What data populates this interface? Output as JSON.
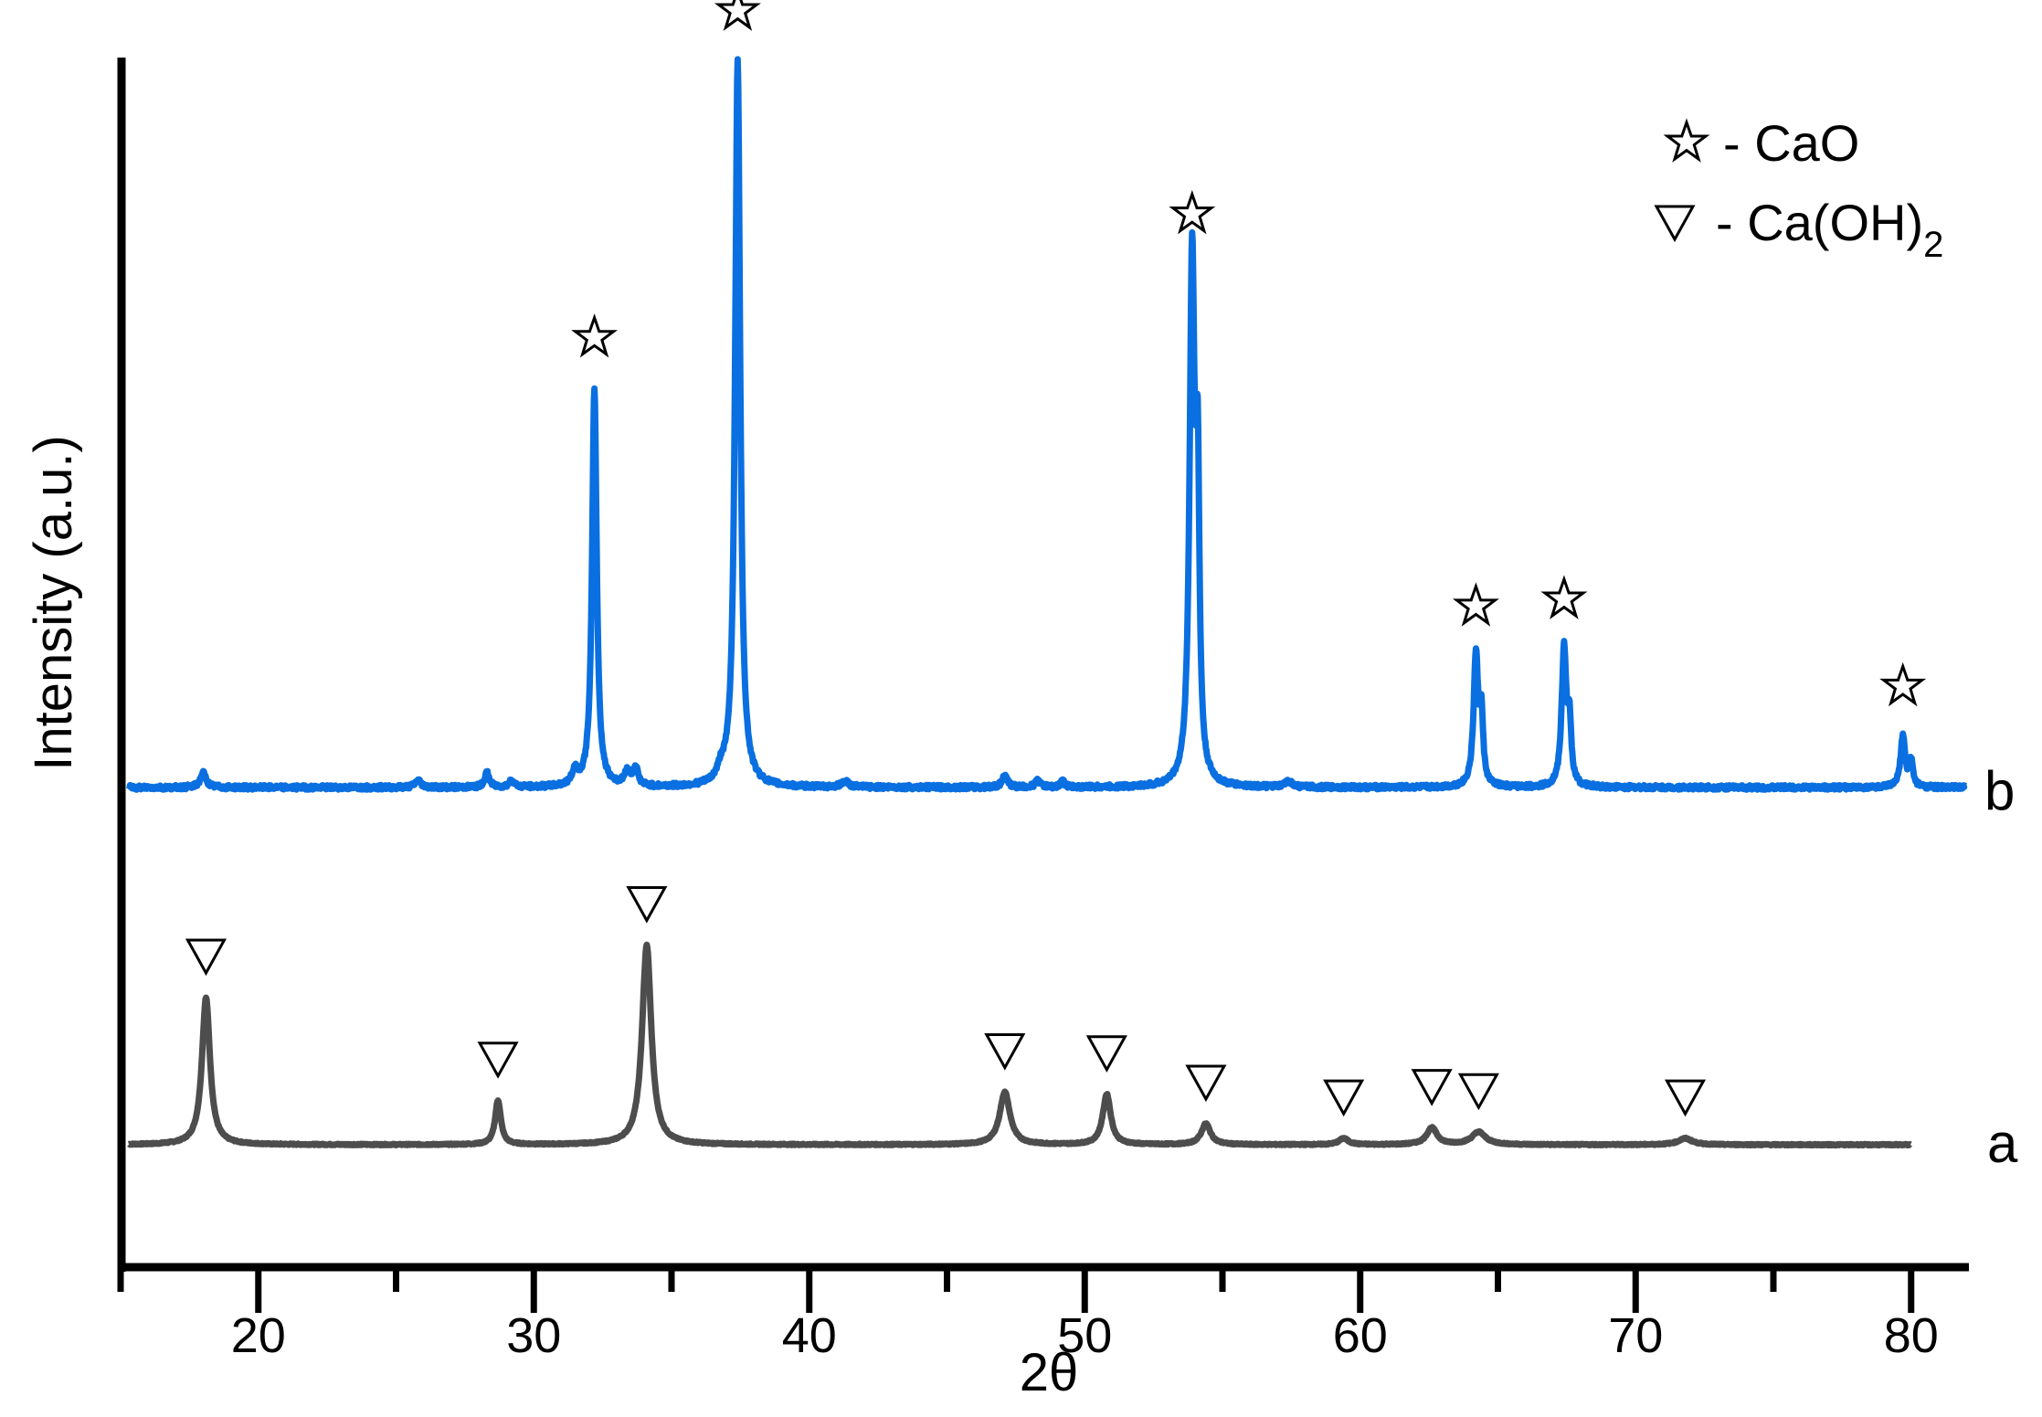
{
  "chart_data": {
    "type": "line",
    "title": "",
    "xlabel": "2θ",
    "ylabel": "Intensity (a.u.)",
    "xlim": [
      15,
      82
    ],
    "x_ticks": [
      20,
      30,
      40,
      50,
      60,
      70,
      80
    ],
    "x_tick_labels": [
      "20",
      "30",
      "40",
      "50",
      "60",
      "70",
      "80"
    ],
    "grid": false,
    "y_ticks_shown": false,
    "legend": {
      "position": "top-right",
      "entries": [
        {
          "symbol": "star",
          "label": "- CaO"
        },
        {
          "symbol": "down-triangle",
          "label": "- Ca(OH)₂"
        }
      ]
    },
    "series": [
      {
        "name": "a",
        "color": "#4d4d4d",
        "baseline": 0,
        "peaks": [
          {
            "x": 18.1,
            "height": 0.7,
            "width": 0.35,
            "marker": "down-triangle"
          },
          {
            "x": 28.7,
            "height": 0.21,
            "width": 0.25,
            "marker": "down-triangle"
          },
          {
            "x": 34.1,
            "height": 0.95,
            "width": 0.4,
            "marker": "down-triangle"
          },
          {
            "x": 47.1,
            "height": 0.25,
            "width": 0.45,
            "marker": "down-triangle"
          },
          {
            "x": 50.8,
            "height": 0.24,
            "width": 0.35,
            "marker": "down-triangle"
          },
          {
            "x": 54.4,
            "height": 0.1,
            "width": 0.4,
            "marker": "down-triangle"
          },
          {
            "x": 59.4,
            "height": 0.03,
            "width": 0.4,
            "marker": "down-triangle"
          },
          {
            "x": 62.6,
            "height": 0.08,
            "width": 0.45,
            "marker": "down-triangle"
          },
          {
            "x": 64.3,
            "height": 0.06,
            "width": 0.6,
            "marker": "down-triangle"
          },
          {
            "x": 71.8,
            "height": 0.03,
            "width": 0.6,
            "marker": "down-triangle"
          }
        ],
        "x_end": 80
      },
      {
        "name": "b",
        "color": "#0a6fe0",
        "baseline": 0,
        "peaks": [
          {
            "x": 18.0,
            "height": 0.02,
            "width": 0.25,
            "marker": null
          },
          {
            "x": 25.8,
            "height": 0.01,
            "width": 0.25,
            "marker": null
          },
          {
            "x": 28.3,
            "height": 0.02,
            "width": 0.2,
            "marker": null
          },
          {
            "x": 29.2,
            "height": 0.01,
            "width": 0.2,
            "marker": null
          },
          {
            "x": 31.5,
            "height": 0.02,
            "width": 0.25,
            "marker": null
          },
          {
            "x": 32.2,
            "height": 0.55,
            "width": 0.2,
            "marker": "star"
          },
          {
            "x": 33.4,
            "height": 0.02,
            "width": 0.25,
            "marker": null
          },
          {
            "x": 33.7,
            "height": 0.025,
            "width": 0.2,
            "marker": null
          },
          {
            "x": 36.8,
            "height": 0.015,
            "width": 0.3,
            "marker": null
          },
          {
            "x": 37.4,
            "height": 1.0,
            "width": 0.22,
            "marker": "star"
          },
          {
            "x": 41.3,
            "height": 0.008,
            "width": 0.3,
            "marker": null
          },
          {
            "x": 47.1,
            "height": 0.015,
            "width": 0.25,
            "marker": null
          },
          {
            "x": 48.3,
            "height": 0.01,
            "width": 0.2,
            "marker": null
          },
          {
            "x": 49.2,
            "height": 0.008,
            "width": 0.2,
            "marker": null
          },
          {
            "x": 53.9,
            "height": 0.72,
            "width": 0.22,
            "marker": "star"
          },
          {
            "x": 54.1,
            "height": 0.37,
            "width": 0.15,
            "marker": null
          },
          {
            "x": 57.4,
            "height": 0.008,
            "width": 0.3,
            "marker": null
          },
          {
            "x": 64.2,
            "height": 0.18,
            "width": 0.2,
            "marker": "star"
          },
          {
            "x": 64.4,
            "height": 0.09,
            "width": 0.15,
            "marker": null
          },
          {
            "x": 67.4,
            "height": 0.19,
            "width": 0.2,
            "marker": "star"
          },
          {
            "x": 67.6,
            "height": 0.08,
            "width": 0.15,
            "marker": null
          },
          {
            "x": 79.7,
            "height": 0.07,
            "width": 0.2,
            "marker": "star"
          },
          {
            "x": 80.0,
            "height": 0.035,
            "width": 0.15,
            "marker": null
          }
        ],
        "x_end": 82
      }
    ],
    "annotations": [
      "a",
      "b"
    ]
  },
  "axes": {
    "xlabel": "2θ",
    "ylabel": "Intensity (a.u.)"
  },
  "legend": {
    "cao_label": "- CaO",
    "caoh2_label_main": "- Ca(OH)",
    "caoh2_subscript": "2"
  },
  "labels": {
    "series_a": "a",
    "series_b": "b"
  }
}
